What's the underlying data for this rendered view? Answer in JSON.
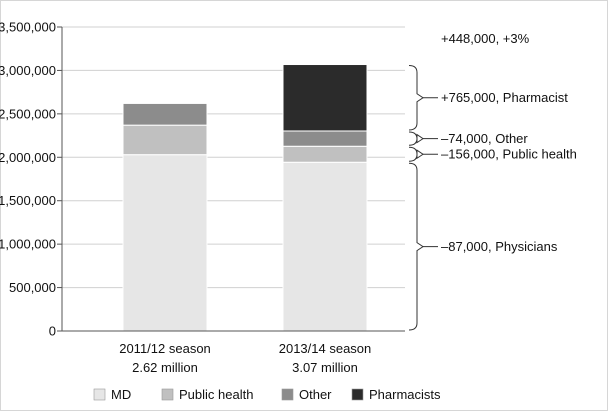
{
  "chart_data": {
    "type": "bar",
    "stacked": true,
    "categories": [
      "2011/12 season",
      "2013/14 season"
    ],
    "category_sublabels": [
      "2.62 million",
      "3.07 million"
    ],
    "series": [
      {
        "name": "MD",
        "values": [
          2030000,
          1943000
        ],
        "color": "#e6e6e6"
      },
      {
        "name": "Public health",
        "values": [
          340000,
          184000
        ],
        "color": "#c0c0c0"
      },
      {
        "name": "Other",
        "values": [
          250000,
          176000
        ],
        "color": "#8c8c8c"
      },
      {
        "name": "Pharmacists",
        "values": [
          0,
          765000
        ],
        "color": "#2b2b2b"
      }
    ],
    "ylim": [
      0,
      3500000
    ],
    "yticks": [
      0,
      500000,
      1000000,
      1500000,
      2000000,
      2500000,
      3000000,
      3500000
    ],
    "ytick_labels": [
      "0",
      "500,000",
      "1,000,000",
      "1,500,000",
      "2,000,000",
      "2,500,000",
      "3,000,000",
      "3,500,000"
    ],
    "grid": true,
    "legend_position": "bottom",
    "annotations": [
      {
        "text": "+448,000, +3%"
      },
      {
        "text": "+765,000, Pharmacist",
        "from": 2303000,
        "to": 3068000
      },
      {
        "text": "–74,000, Other",
        "from": 2127000,
        "to": 2303000
      },
      {
        "text": "–156,000, Public health",
        "from": 1943000,
        "to": 2127000
      },
      {
        "text": "–87,000, Physicians",
        "from": 0,
        "to": 1943000
      }
    ]
  }
}
